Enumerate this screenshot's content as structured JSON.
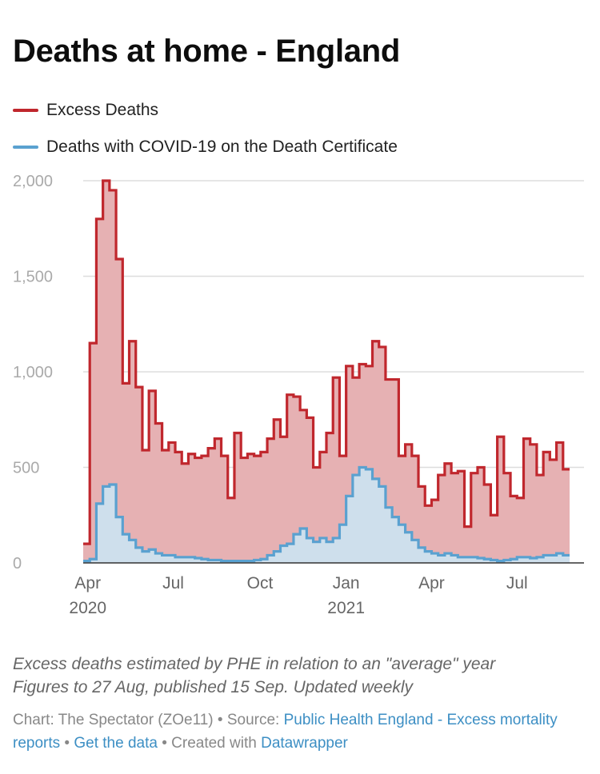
{
  "colors": {
    "excess": "#c0272d",
    "excess_fill": "#e6b1b3",
    "covid": "#5aa1d0",
    "covid_fill": "#cce2ef",
    "grid": "#dddddd",
    "axis": "#333333"
  },
  "title": "Deaths at home - England",
  "legend": [
    {
      "key": "excess",
      "label": "Excess Deaths"
    },
    {
      "key": "covid",
      "label": "Deaths with COVID-19 on the Death Certificate"
    }
  ],
  "chart_data": {
    "type": "area",
    "title": "Deaths at home - England",
    "step": true,
    "x_unit": "weeks since 27 Mar 2020 (weekly)",
    "ylim": [
      0,
      2000
    ],
    "yticks": [
      0,
      500,
      1000,
      1500,
      2000
    ],
    "ytick_labels": [
      "0",
      "500",
      "1,000",
      "1,500",
      "2,000"
    ],
    "grid": true,
    "xticks": [
      {
        "week": 0.7,
        "label": "Apr",
        "sub": "2020"
      },
      {
        "week": 13.7,
        "label": "Jul",
        "sub": ""
      },
      {
        "week": 26.9,
        "label": "Oct",
        "sub": ""
      },
      {
        "week": 40.0,
        "label": "Jan",
        "sub": "2021"
      },
      {
        "week": 53.0,
        "label": "Apr",
        "sub": ""
      },
      {
        "week": 66.0,
        "label": "Jul",
        "sub": ""
      }
    ],
    "series": [
      {
        "name": "Excess Deaths",
        "key": "excess",
        "values": [
          100,
          1150,
          1800,
          2000,
          1950,
          1590,
          940,
          1160,
          920,
          590,
          900,
          730,
          590,
          630,
          580,
          520,
          570,
          550,
          560,
          600,
          650,
          560,
          340,
          680,
          550,
          570,
          560,
          580,
          650,
          750,
          660,
          880,
          870,
          800,
          760,
          500,
          580,
          680,
          970,
          560,
          1030,
          970,
          1040,
          1030,
          1160,
          1130,
          960,
          960,
          560,
          620,
          560,
          400,
          300,
          330,
          460,
          520,
          470,
          480,
          190,
          470,
          500,
          410,
          250,
          660,
          470,
          350,
          340,
          650,
          620,
          460,
          580,
          540,
          630,
          490
        ]
      },
      {
        "name": "Deaths with COVID-19 on the Death Certificate",
        "key": "covid",
        "values": [
          10,
          20,
          310,
          400,
          410,
          240,
          150,
          120,
          80,
          60,
          70,
          50,
          40,
          40,
          30,
          30,
          30,
          25,
          20,
          15,
          15,
          10,
          10,
          10,
          10,
          10,
          15,
          20,
          40,
          60,
          90,
          100,
          150,
          180,
          130,
          110,
          130,
          110,
          130,
          200,
          350,
          460,
          500,
          490,
          440,
          400,
          290,
          240,
          200,
          160,
          120,
          80,
          60,
          50,
          40,
          50,
          40,
          30,
          30,
          30,
          25,
          20,
          15,
          10,
          15,
          20,
          30,
          30,
          25,
          30,
          40,
          40,
          50,
          40
        ]
      }
    ],
    "xlabel": "",
    "ylabel": ""
  },
  "notes": {
    "line1": "Excess deaths estimated by PHE in relation to an \"average\" year",
    "line2": "Figures to 27 Aug, published 15 Sep. Updated weekly"
  },
  "footer": {
    "chart_credit": "Chart: The Spectator (ZOe11)",
    "sep1": " • Source: ",
    "source_link": "Public Health England - Excess mortality reports",
    "sep2": " • ",
    "data_link": "Get the data",
    "sep3": " • Created with ",
    "tool_link": "Datawrapper"
  }
}
